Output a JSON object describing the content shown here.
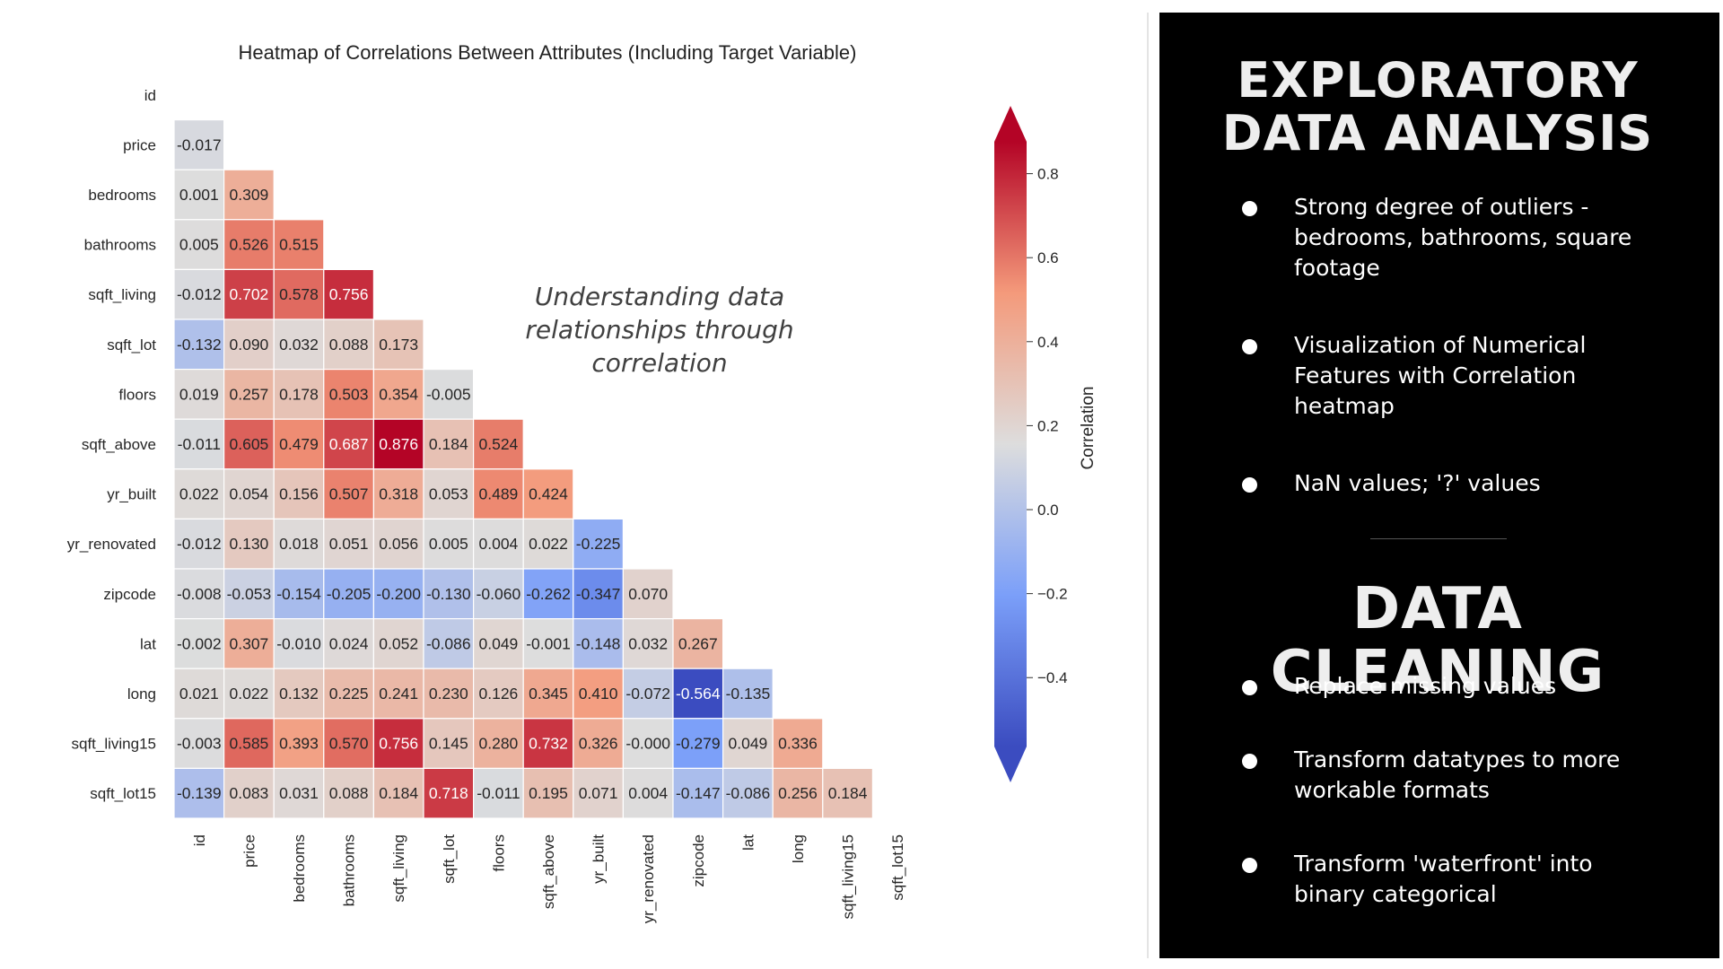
{
  "chart_data": {
    "type": "heatmap",
    "title": "Heatmap of Correlations Between Attributes (Including Target Variable)",
    "variables": [
      "id",
      "price",
      "bedrooms",
      "bathrooms",
      "sqft_living",
      "sqft_lot",
      "floors",
      "sqft_above",
      "yr_built",
      "yr_renovated",
      "zipcode",
      "lat",
      "long",
      "sqft_living15",
      "sqft_lot15"
    ],
    "lower_triangle": [
      [],
      [
        "-0.017"
      ],
      [
        "0.001",
        "0.309"
      ],
      [
        "0.005",
        "0.526",
        "0.515"
      ],
      [
        "-0.012",
        "0.702",
        "0.578",
        "0.756"
      ],
      [
        "-0.132",
        "0.090",
        "0.032",
        "0.088",
        "0.173"
      ],
      [
        "0.019",
        "0.257",
        "0.178",
        "0.503",
        "0.354",
        "-0.005"
      ],
      [
        "-0.011",
        "0.605",
        "0.479",
        "0.687",
        "0.876",
        "0.184",
        "0.524"
      ],
      [
        "0.022",
        "0.054",
        "0.156",
        "0.507",
        "0.318",
        "0.053",
        "0.489",
        "0.424"
      ],
      [
        "-0.012",
        "0.130",
        "0.018",
        "0.051",
        "0.056",
        "0.005",
        "0.004",
        "0.022",
        "-0.225"
      ],
      [
        "-0.008",
        "-0.053",
        "-0.154",
        "-0.205",
        "-0.200",
        "-0.130",
        "-0.060",
        "-0.262",
        "-0.347",
        "0.070"
      ],
      [
        "-0.002",
        "0.307",
        "-0.010",
        "0.024",
        "0.052",
        "-0.086",
        "0.049",
        "-0.001",
        "-0.148",
        "0.032",
        "0.267"
      ],
      [
        "0.021",
        "0.022",
        "0.132",
        "0.225",
        "0.241",
        "0.230",
        "0.126",
        "0.345",
        "0.410",
        "-0.072",
        "-0.564",
        "-0.135"
      ],
      [
        "-0.003",
        "0.585",
        "0.393",
        "0.570",
        "0.756",
        "0.145",
        "0.280",
        "0.732",
        "0.326",
        "-0.000",
        "-0.279",
        "0.049",
        "0.336"
      ],
      [
        "-0.139",
        "0.083",
        "0.031",
        "0.088",
        "0.184",
        "0.718",
        "-0.011",
        "0.195",
        "0.071",
        "0.004",
        "-0.147",
        "-0.086",
        "0.256",
        "0.184"
      ]
    ],
    "colorbar": {
      "label": "Correlation",
      "colormap": "coolwarm",
      "range": [
        -0.564,
        0.876
      ],
      "ticks": [
        "0.8",
        "0.6",
        "0.4",
        "0.2",
        "0.0",
        "−0.2",
        "−0.4"
      ],
      "extend": "both"
    },
    "annotation": "Understanding data relationships through correlation"
  },
  "panel": {
    "title_1": "EXPLORATORY DATA ANALYSIS",
    "bullets_1": [
      "Strong degree of outliers - bedrooms, bathrooms, square footage",
      "Visualization of Numerical Features with Correlation heatmap",
      "NaN values;  '?' values"
    ],
    "title_2": "DATA CLEANING",
    "bullets_2": [
      "Replace missing values",
      "Transform datatypes to more workable formats",
      "Transform 'waterfront' into binary categorical"
    ]
  },
  "colors": {
    "panel_bg": "#000000",
    "panel_text": "#ffffff",
    "cold": "#3b4cc0",
    "neutral": "#dddddd",
    "hot": "#b40426"
  }
}
